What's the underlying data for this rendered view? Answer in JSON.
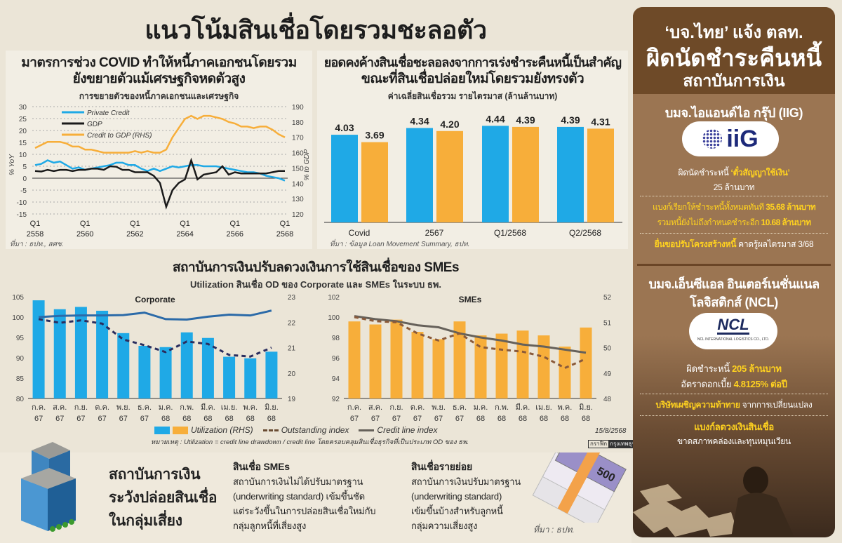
{
  "main_title": "แนวโน้มสินเชื่อโดยรวมชะลอตัว",
  "panel1": {
    "title_1": "มาตรการช่วง COVID ทำให้หนี้ภาคเอกชนโดยรวม",
    "title_2": "ยังขยายตัวแม้เศรษฐกิจหดตัวสูง",
    "source": "ที่มา : ธปท., สศช."
  },
  "panel2": {
    "title_1": "ยอดคงค้างสินเชื่อชะลอลงจากการเร่งชำระคืนหนี้เป็นสำคัญ",
    "title_2": "ขณะที่สินเชื่อปล่อยใหม่โดยรวมยังทรงตัว",
    "source": "ที่มา : ข้อมูล Loan Movement Summary, ธปท."
  },
  "panel3": {
    "title": "สถาบันการเงินปรับลดวงเงินการใช้สินเชื่อของ SMEs",
    "subtitle": "Utilization สินเชื่อ OD ของ Corporate และ SMEs ในระบบ ธพ.",
    "legend_util": "Utilization (RHS)",
    "legend_out": "Outstanding index",
    "legend_credit": "Credit line index",
    "note": "หมายเหตุ : Utilization = credit line drawdown / credit line โดยครอบคลุมสินเชื่อธุรกิจที่เป็นประเภท OD ของ ธพ.",
    "date": "15/8/2568",
    "credit_a": "กราฟิก",
    "credit_b": "กรุงเทพธุรกิจ"
  },
  "bottom": {
    "headline": [
      "สถาบันการเงิน",
      "ระวังปล่อยสินเชื่อ",
      "ในกลุ่มเสี่ยง"
    ],
    "sme_title": "สินเชื่อ SMEs",
    "sme_lines": [
      "สถาบันการเงินไม่ได้ปรับมาตรฐาน",
      "(underwriting standard) เข้มขึ้นชัด",
      "แต่ระวังขึ้นในการปล่อยสินเชื่อใหม่กับ",
      "กลุ่มลูกหนี้ที่เสี่ยงสูง"
    ],
    "retail_title": "สินเชื่อรายย่อย",
    "retail_lines": [
      "สถาบันการเงินปรับมาตรฐาน",
      "(underwriting standard)",
      "เข้มขึ้นบ้างสำหรับลูกหนี้",
      "กลุ่มความเสี่ยงสูง"
    ],
    "source": "ที่มา : ธปท.",
    "banknote": "500"
  },
  "right": {
    "head_1": "‘บจ.ไทย’ แจ้ง ตลท.",
    "head_2": "ผิดนัดชำระคืนหนี้",
    "head_3": "สถาบันการเงิน",
    "iig": {
      "name": "บมจ.ไอแอนด์ไอ กรุ๊ป (IIG)",
      "logo": "iiG",
      "l1a": "ผิดนัดชำระหนี้ ",
      "l1b": "‘ตั๋วสัญญาใช้เงิน’",
      "l2": "25 ล้านบาท",
      "l3a": "แบงก์เรียกให้ชำระหนี้ทั้งหมดทันที ",
      "l3b": "35.68 ล้านบาท",
      "l4a": "รวมหนี้ยังไม่ถึงกำหนดชำระอีก ",
      "l4b": "10.68 ล้านบาท",
      "l5a": "ยื่นขอปรับโครงสร้างหนี้",
      "l5b": " คาดรู้ผลไตรมาส 3/68"
    },
    "ncl": {
      "name_1": "บมจ.เอ็นซีแอล อินเตอร์เนชั่นแนล",
      "name_2": "โลจิสติกส์ (NCL)",
      "logo": "NCL",
      "logo_sub": "NCL INTERNATIONAL LOGISTICS CO., LTD.",
      "l1a": "ผิดชำระหนี้ ",
      "l1b": "205 ล้านบาท",
      "l2a": "อัตราดอกเบี้ย ",
      "l2b": "4.8125% ต่อปี",
      "l3a": "บริษัทเผชิญความท้าทาย",
      "l3b": " จากการเปลี่ยนแปลง",
      "l4": "แบงก์ลดวงเงินสินเชื่อ",
      "l5": "ขาดสภาพคล่องและทุนหมุนเวียน"
    }
  },
  "colors": {
    "blue": "#1fa9e6",
    "orange": "#f7ae3a",
    "black": "#1a1a1a",
    "navy": "#2a2d5e",
    "gray": "#66615a",
    "brown": "#6e4a28"
  },
  "chart_data": [
    {
      "type": "line",
      "title": "การขยายตัวของหนี้ภาคเอกชนและเศรษฐกิจ",
      "ylabel": "% YoY",
      "y2label": "% to GDP",
      "ylim": [
        -15,
        30
      ],
      "y2lim": [
        120,
        190
      ],
      "yticks": [
        30,
        25,
        20,
        15,
        10,
        5,
        0,
        -5,
        -10,
        -15
      ],
      "y2ticks": [
        190,
        180,
        170,
        160,
        150,
        140,
        130,
        120
      ],
      "xticks": [
        {
          "q": "Q1",
          "y": "2558"
        },
        {
          "q": "Q1",
          "y": "2560"
        },
        {
          "q": "Q1",
          "y": "2562"
        },
        {
          "q": "Q1",
          "y": "2564"
        },
        {
          "q": "Q1",
          "y": "2566"
        },
        {
          "q": "Q1",
          "y": "2568"
        }
      ],
      "x_range": "Q1 2558 – Q1 2568 (quarterly)",
      "series": [
        {
          "name": "Private Credit",
          "axis": "left",
          "values": [
            5.5,
            6,
            7.5,
            6.5,
            7,
            5.5,
            4,
            4.5,
            3.5,
            4,
            4.5,
            5,
            5.5,
            6.5,
            6.5,
            5.5,
            5.5,
            4,
            3,
            4,
            3,
            4,
            5,
            4.5,
            5,
            5.5,
            5.5,
            5,
            5,
            5,
            4.5,
            4,
            3.5,
            3,
            2.5,
            2.5,
            2,
            1,
            0.5,
            0,
            -1
          ]
        },
        {
          "name": "GDP",
          "axis": "left",
          "values": [
            3,
            2.8,
            3.5,
            3,
            3.5,
            3.5,
            3,
            3.5,
            3.5,
            4,
            4,
            3.5,
            5,
            4.8,
            3.5,
            3.5,
            2.5,
            2.5,
            2.5,
            1,
            -2,
            -12,
            -5,
            -2,
            -0.5,
            7.5,
            -0.5,
            1.5,
            2,
            2.5,
            5,
            1.5,
            2.5,
            2,
            2,
            2,
            2,
            2,
            2.5,
            3,
            3
          ]
        },
        {
          "name": "Credit to GDP (RHS)",
          "axis": "right",
          "values": [
            163,
            165,
            167,
            167,
            167,
            166,
            164,
            164,
            162,
            162,
            161,
            160,
            160,
            160,
            160,
            160,
            161,
            160,
            161,
            160,
            160,
            162,
            170,
            176,
            182,
            184,
            182,
            184,
            184,
            183,
            182,
            180,
            179,
            177,
            177,
            176,
            177,
            177,
            175,
            172,
            170
          ]
        }
      ]
    },
    {
      "type": "bar",
      "title": "ค่าเฉลี่ยสินเชื่อรวม รายไตรมาส (ล้านล้านบาท)",
      "categories": [
        "Covid",
        "2567",
        "Q1/2568",
        "Q2/2568"
      ],
      "ylim": [
        0,
        5
      ],
      "series": [
        {
          "name": "blue",
          "values": [
            4.03,
            4.34,
            4.44,
            4.39
          ]
        },
        {
          "name": "orange",
          "values": [
            3.69,
            4.2,
            4.39,
            4.31
          ]
        }
      ]
    },
    {
      "type": "bar+line",
      "title": "Corporate",
      "categories": [
        "ก.ค.|67",
        "ส.ค.|67",
        "ก.ย.|67",
        "ต.ค.|67",
        "พ.ย.|67",
        "ธ.ค.|67",
        "ม.ค.|68",
        "ก.พ.|68",
        "มี.ค.|68",
        "เม.ย.|68",
        "พ.ค.|68",
        "มิ.ย.|68"
      ],
      "ylim": [
        80,
        105
      ],
      "y2lim": [
        19,
        23
      ],
      "yticks": [
        105,
        100,
        95,
        90,
        85,
        80
      ],
      "y2ticks": [
        23,
        22,
        21,
        20,
        19
      ],
      "utilization_rhs": [
        22.86,
        22.51,
        22.6,
        22.45,
        21.57,
        21.07,
        21.02,
        21.6,
        21.38,
        20.64,
        20.58,
        20.84
      ],
      "outstanding_index": [
        99.5,
        98.6,
        99.2,
        98.4,
        94.5,
        93.1,
        91.4,
        94,
        93.4,
        90.7,
        90.3,
        92.5
      ],
      "credit_line_index": [
        100,
        100.3,
        100.4,
        100.4,
        100.5,
        101.1,
        99.5,
        99.4,
        100.1,
        100.6,
        100.4,
        101.6
      ]
    },
    {
      "type": "bar+line",
      "title": "SMEs",
      "categories": [
        "ก.ค.|67",
        "ส.ค.|67",
        "ก.ย.|67",
        "ต.ค.|67",
        "พ.ย.|67",
        "ธ.ค.|67",
        "ม.ค.|68",
        "ก.พ.|68",
        "มี.ค.|68",
        "เม.ย.|68",
        "พ.ค.|68",
        "มิ.ย.|68"
      ],
      "ylim": [
        92,
        102
      ],
      "y2lim": [
        48,
        52
      ],
      "yticks": [
        102,
        100,
        98,
        96,
        94,
        92
      ],
      "y2ticks": [
        52,
        51,
        50,
        49,
        48
      ],
      "utilization_rhs": [
        51.03,
        50.91,
        51.1,
        50.62,
        50.33,
        51.03,
        50.48,
        50.55,
        50.67,
        50.48,
        50.04,
        50.79
      ],
      "outstanding_index": [
        100,
        99.6,
        99.5,
        98.4,
        97.7,
        98.4,
        97.05,
        96.8,
        96.6,
        96.1,
        95.0,
        95.9
      ],
      "credit_line_index": [
        100.1,
        99.8,
        99.6,
        99.2,
        99.0,
        98.4,
        98.0,
        97.7,
        97.3,
        97.1,
        96.8,
        96.5
      ]
    }
  ]
}
